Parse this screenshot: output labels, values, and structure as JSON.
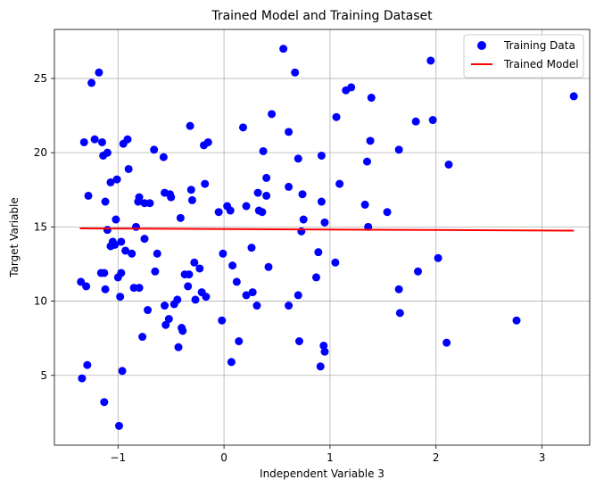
{
  "chart_data": {
    "type": "scatter",
    "title": "Trained Model and Training Dataset",
    "xlabel": "Independent Variable 3",
    "ylabel": "Target Variable",
    "xlim": [
      -1.6,
      3.45
    ],
    "ylim": [
      0.3,
      28.3
    ],
    "xticks": [
      -1,
      0,
      1,
      2,
      3
    ],
    "yticks": [
      5,
      10,
      15,
      20,
      25
    ],
    "grid": true,
    "legend_position": "top-right",
    "colors": {
      "scatter": "#0000ff",
      "line": "#ff0000",
      "grid": "#b0b0b0"
    },
    "series": [
      {
        "name": "Training Data",
        "kind": "scatter",
        "points": [
          [
            -1.34,
            4.8
          ],
          [
            -1.35,
            11.3
          ],
          [
            -1.32,
            20.7
          ],
          [
            -1.3,
            11.0
          ],
          [
            -1.29,
            5.7
          ],
          [
            -1.28,
            17.1
          ],
          [
            -1.25,
            24.7
          ],
          [
            -1.22,
            20.9
          ],
          [
            -1.18,
            25.4
          ],
          [
            -1.16,
            11.9
          ],
          [
            -1.15,
            20.7
          ],
          [
            -1.14,
            19.8
          ],
          [
            -1.13,
            3.2
          ],
          [
            -1.13,
            11.9
          ],
          [
            -1.12,
            16.7
          ],
          [
            -1.12,
            10.8
          ],
          [
            -1.1,
            14.8
          ],
          [
            -1.1,
            20.0
          ],
          [
            -1.07,
            13.7
          ],
          [
            -1.07,
            18.0
          ],
          [
            -1.05,
            14.0
          ],
          [
            -1.03,
            13.8
          ],
          [
            -1.02,
            15.5
          ],
          [
            -1.01,
            18.2
          ],
          [
            -1.0,
            11.6
          ],
          [
            -0.99,
            1.6
          ],
          [
            -0.98,
            10.3
          ],
          [
            -0.97,
            14.0
          ],
          [
            -0.97,
            11.9
          ],
          [
            -0.96,
            5.3
          ],
          [
            -0.95,
            20.6
          ],
          [
            -0.93,
            13.4
          ],
          [
            -0.91,
            20.9
          ],
          [
            -0.9,
            18.9
          ],
          [
            -0.87,
            13.2
          ],
          [
            -0.85,
            10.9
          ],
          [
            -0.83,
            15.0
          ],
          [
            -0.81,
            16.7
          ],
          [
            -0.8,
            17.0
          ],
          [
            -0.8,
            10.9
          ],
          [
            -0.77,
            7.6
          ],
          [
            -0.75,
            16.6
          ],
          [
            -0.75,
            14.2
          ],
          [
            -0.72,
            9.4
          ],
          [
            -0.7,
            16.6
          ],
          [
            -0.66,
            20.2
          ],
          [
            -0.65,
            12.0
          ],
          [
            -0.63,
            13.2
          ],
          [
            -0.57,
            19.7
          ],
          [
            -0.56,
            9.7
          ],
          [
            -0.56,
            17.3
          ],
          [
            -0.55,
            8.4
          ],
          [
            -0.52,
            8.8
          ],
          [
            -0.51,
            17.2
          ],
          [
            -0.5,
            17.0
          ],
          [
            -0.47,
            9.8
          ],
          [
            -0.44,
            10.1
          ],
          [
            -0.43,
            6.9
          ],
          [
            -0.41,
            15.6
          ],
          [
            -0.4,
            8.2
          ],
          [
            -0.39,
            8.0
          ],
          [
            -0.37,
            11.8
          ],
          [
            -0.34,
            11.0
          ],
          [
            -0.33,
            11.8
          ],
          [
            -0.32,
            21.8
          ],
          [
            -0.31,
            17.5
          ],
          [
            -0.3,
            16.8
          ],
          [
            -0.28,
            12.6
          ],
          [
            -0.27,
            10.1
          ],
          [
            -0.23,
            12.2
          ],
          [
            -0.21,
            10.6
          ],
          [
            -0.19,
            20.5
          ],
          [
            -0.18,
            17.9
          ],
          [
            -0.17,
            10.3
          ],
          [
            -0.15,
            20.7
          ],
          [
            -0.05,
            16.0
          ],
          [
            -0.02,
            8.7
          ],
          [
            -0.01,
            13.2
          ],
          [
            0.03,
            16.4
          ],
          [
            0.06,
            16.1
          ],
          [
            0.07,
            5.9
          ],
          [
            0.08,
            12.4
          ],
          [
            0.12,
            11.3
          ],
          [
            0.14,
            7.3
          ],
          [
            0.18,
            21.7
          ],
          [
            0.21,
            16.4
          ],
          [
            0.21,
            10.4
          ],
          [
            0.26,
            13.6
          ],
          [
            0.27,
            10.6
          ],
          [
            0.31,
            9.7
          ],
          [
            0.32,
            17.3
          ],
          [
            0.33,
            16.1
          ],
          [
            0.36,
            16.0
          ],
          [
            0.37,
            20.1
          ],
          [
            0.4,
            17.1
          ],
          [
            0.4,
            18.3
          ],
          [
            0.42,
            12.3
          ],
          [
            0.45,
            22.6
          ],
          [
            0.56,
            27.0
          ],
          [
            0.61,
            21.4
          ],
          [
            0.61,
            17.7
          ],
          [
            0.61,
            9.7
          ],
          [
            0.67,
            25.4
          ],
          [
            0.7,
            10.4
          ],
          [
            0.7,
            19.6
          ],
          [
            0.71,
            7.3
          ],
          [
            0.73,
            14.7
          ],
          [
            0.74,
            17.2
          ],
          [
            0.75,
            15.5
          ],
          [
            0.87,
            11.6
          ],
          [
            0.89,
            13.3
          ],
          [
            0.91,
            5.6
          ],
          [
            0.92,
            19.8
          ],
          [
            0.92,
            16.7
          ],
          [
            0.94,
            7.0
          ],
          [
            0.95,
            6.6
          ],
          [
            0.95,
            15.3
          ],
          [
            1.05,
            12.6
          ],
          [
            1.06,
            22.4
          ],
          [
            1.09,
            17.9
          ],
          [
            1.15,
            24.2
          ],
          [
            1.2,
            24.4
          ],
          [
            1.33,
            16.5
          ],
          [
            1.35,
            19.4
          ],
          [
            1.36,
            15.0
          ],
          [
            1.38,
            20.8
          ],
          [
            1.39,
            23.7
          ],
          [
            1.54,
            16.0
          ],
          [
            1.65,
            10.8
          ],
          [
            1.65,
            20.2
          ],
          [
            1.66,
            9.2
          ],
          [
            1.81,
            22.1
          ],
          [
            1.83,
            12.0
          ],
          [
            1.95,
            26.2
          ],
          [
            1.97,
            22.2
          ],
          [
            2.02,
            12.9
          ],
          [
            2.1,
            7.2
          ],
          [
            2.12,
            19.2
          ],
          [
            2.76,
            8.7
          ],
          [
            3.3,
            23.8
          ]
        ]
      },
      {
        "name": "Trained Model",
        "kind": "line",
        "points": [
          [
            -1.36,
            14.9
          ],
          [
            3.3,
            14.75
          ]
        ]
      }
    ]
  }
}
